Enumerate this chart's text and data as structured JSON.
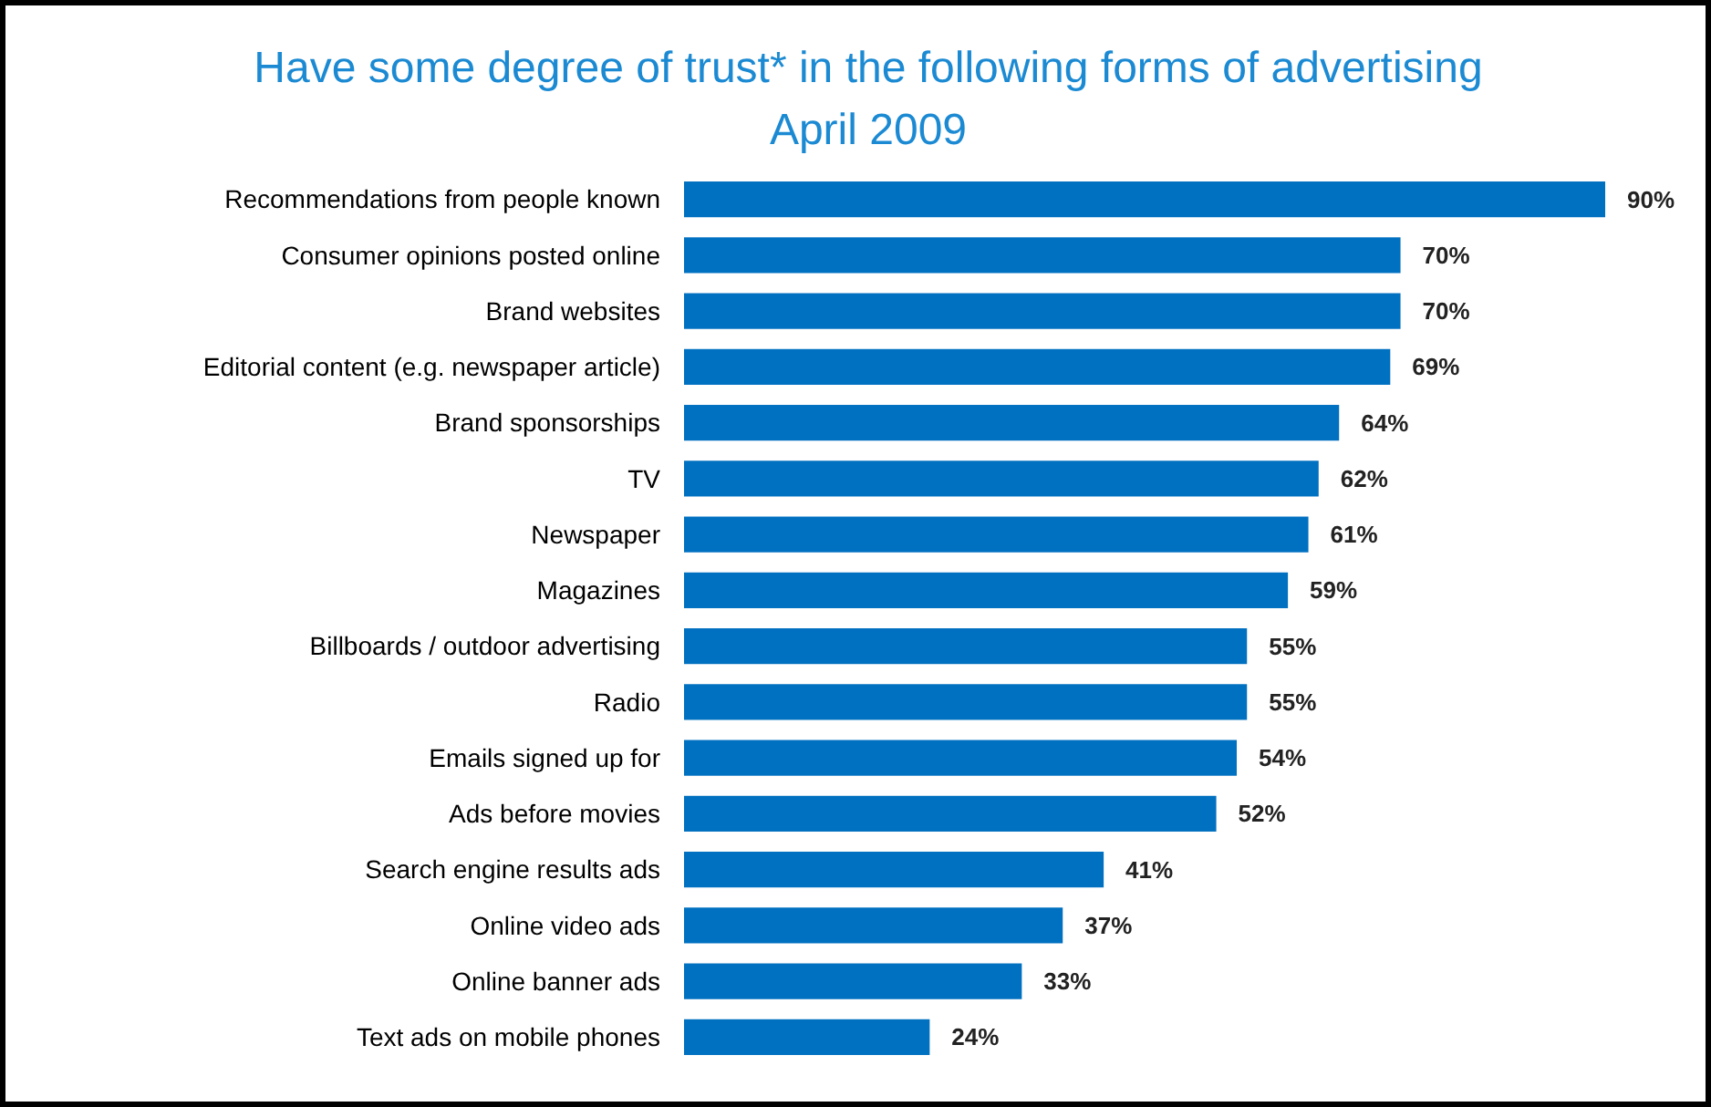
{
  "chart_data": {
    "type": "bar",
    "orientation": "horizontal",
    "title": "Have some degree of trust* in the following forms of advertising",
    "subtitle": "April 2009",
    "categories": [
      "Recommendations from people known",
      "Consumer opinions posted online",
      "Brand websites",
      "Editorial content (e.g. newspaper article)",
      "Brand sponsorships",
      "TV",
      "Newspaper",
      "Magazines",
      "Billboards / outdoor advertising",
      "Radio",
      "Emails signed up for",
      "Ads before movies",
      "Search engine results ads",
      "Online video ads",
      "Online banner ads",
      "Text ads on mobile phones"
    ],
    "values": [
      90,
      70,
      70,
      69,
      64,
      62,
      61,
      59,
      55,
      55,
      54,
      52,
      41,
      37,
      33,
      24
    ],
    "value_labels": [
      "90%",
      "70%",
      "70%",
      "69%",
      "64%",
      "62%",
      "61%",
      "59%",
      "55%",
      "55%",
      "54%",
      "52%",
      "41%",
      "37%",
      "33%",
      "24%"
    ],
    "color": "#0070c0",
    "tick_labels": "y"
  }
}
